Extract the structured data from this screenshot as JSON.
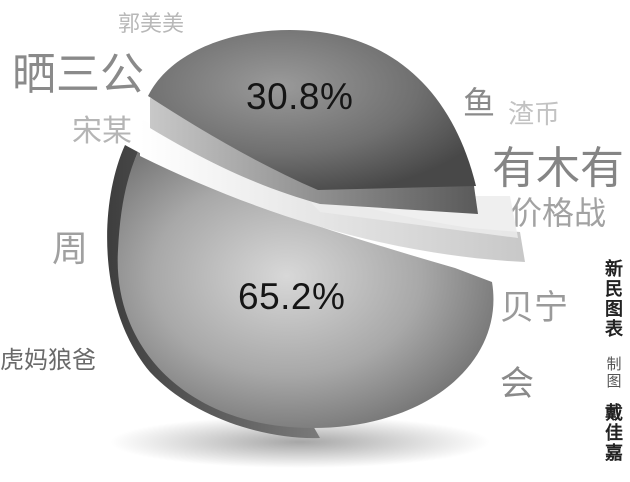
{
  "background_words": {
    "w1": "晒三公",
    "w2": "郭美美",
    "w3": "宋某",
    "w4": "鱼",
    "w5": "渣币",
    "w6": "有木有",
    "w7": "价格战",
    "w8": "周",
    "w9": "贝宁",
    "w10": "虎妈狼爸",
    "w11": "会"
  },
  "credit": {
    "source": "新民图表",
    "role": "制图",
    "author": "戴佳嘉"
  },
  "chart_data": {
    "type": "pie",
    "slices": [
      {
        "label": "30.8%",
        "value": 30.8
      },
      {
        "label": "65.2%",
        "value": 65.2
      }
    ],
    "colors": {
      "top_slice": "#6e6e6e",
      "bottom_slice": "#9a9a9a",
      "separator": "#f2f2f2"
    }
  }
}
